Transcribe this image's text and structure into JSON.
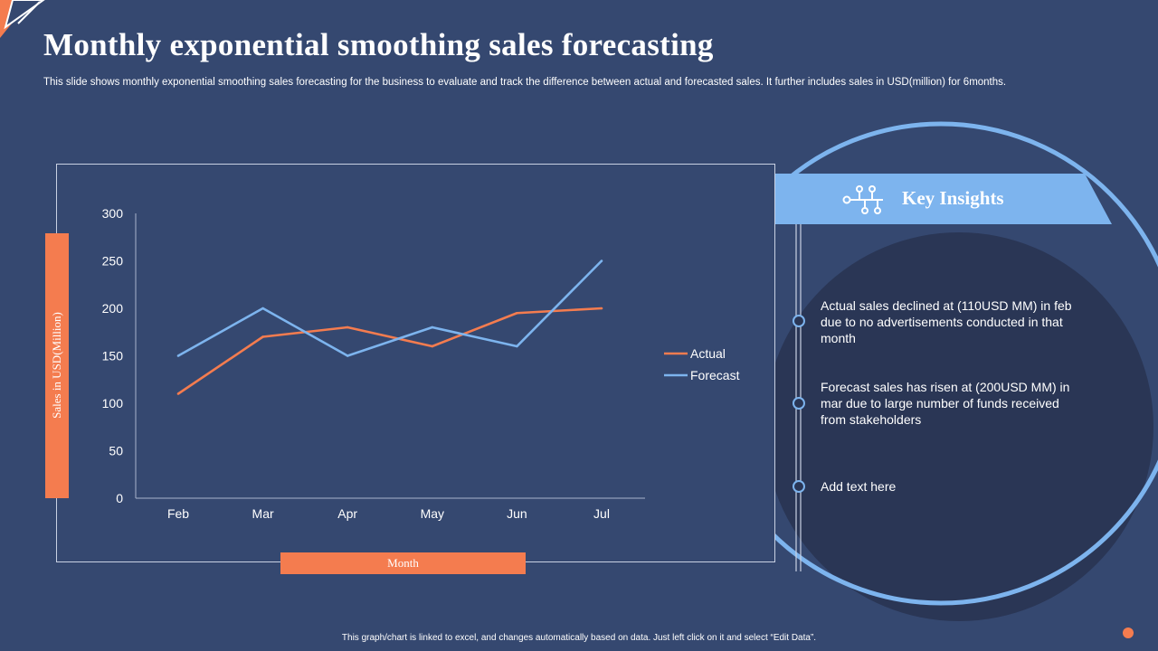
{
  "header": {
    "title": "Monthly exponential smoothing sales forecasting",
    "subtitle": "This slide shows monthly exponential smoothing sales forecasting for the business to evaluate and track the difference between actual and forecasted sales. It further includes sales in USD(million) for 6months."
  },
  "chart_data": {
    "type": "line",
    "categories": [
      "Feb",
      "Mar",
      "Apr",
      "May",
      "Jun",
      "Jul"
    ],
    "series": [
      {
        "name": "Actual",
        "color": "#f47c4f",
        "values": [
          110,
          170,
          180,
          160,
          195,
          200
        ]
      },
      {
        "name": "Forecast",
        "color": "#7db4ee",
        "values": [
          150,
          200,
          150,
          180,
          160,
          250
        ]
      }
    ],
    "ylim": [
      0,
      300
    ],
    "yticks": [
      0,
      50,
      100,
      150,
      200,
      250,
      300
    ],
    "xlabel": "Month",
    "ylabel": "Sales in USD(Million)",
    "legend": "right"
  },
  "insights": {
    "heading": "Key Insights",
    "items": [
      "Actual sales declined at (110USD MM)  in feb due to no advertisements conducted in that month",
      "Forecast sales has risen at (200USD MM) in mar due to large number of funds received from stakeholders",
      "Add text here"
    ]
  },
  "footer": "This graph/chart is linked to excel, and changes automatically based on data.  Just left click on it and select “Edit Data”.",
  "colors": {
    "background": "#354870",
    "accent": "#f47c4f",
    "light_blue": "#7db4ee",
    "dark_circle": "#2a3655"
  }
}
